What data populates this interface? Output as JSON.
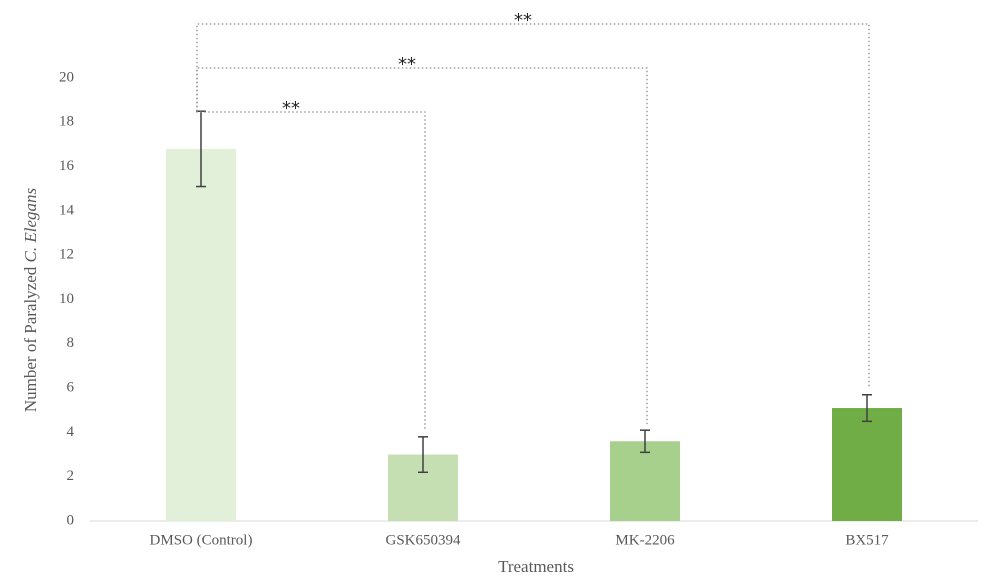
{
  "chart_data": {
    "type": "bar",
    "categories": [
      "DMSO (Control)",
      "GSK650394",
      "MK-2206",
      "BX517"
    ],
    "values": [
      16.8,
      3.0,
      3.6,
      5.1
    ],
    "errors": [
      1.7,
      0.8,
      0.5,
      0.6
    ],
    "colors": [
      "#e2efd9",
      "#c5dfb3",
      "#a8d08d",
      "#70ad47"
    ],
    "xlabel": "Treatments",
    "ylabel": "Number of Paralyzed",
    "ylabel_italic": "C. Elegans",
    "ylim": [
      0,
      20
    ],
    "yticks": [
      0,
      2,
      4,
      6,
      8,
      10,
      12,
      14,
      16,
      18,
      20
    ],
    "annotations": [
      "**",
      "**",
      "**"
    ]
  }
}
